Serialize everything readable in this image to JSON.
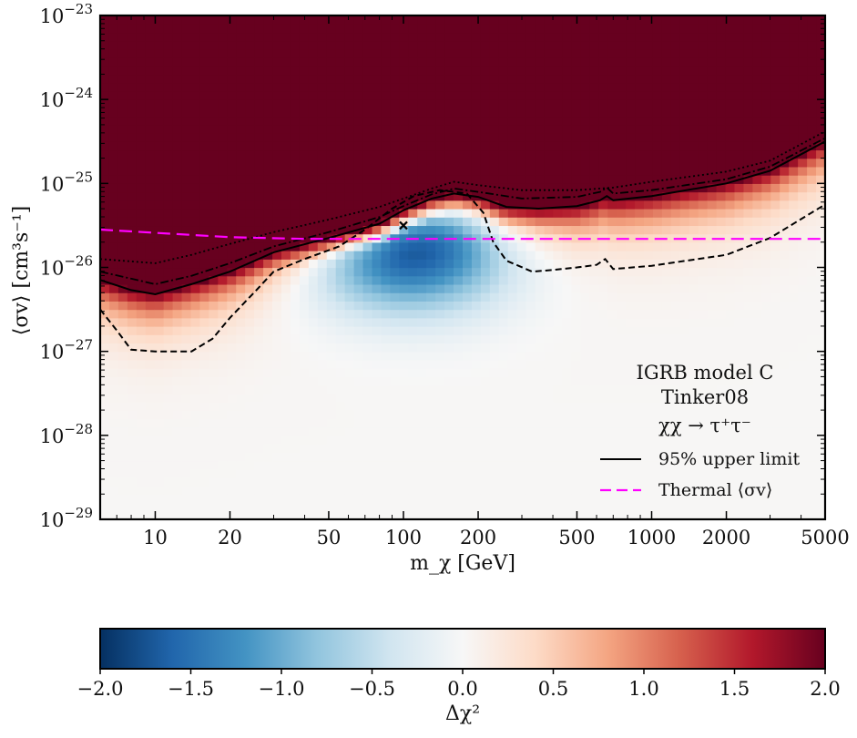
{
  "chart_data": {
    "type": "heatmap",
    "xlabel": "m_χ [GeV]",
    "ylabel": "⟨σv⟩ [cm³s⁻¹]",
    "xscale": "log",
    "yscale": "log",
    "xlim": [
      6,
      5000
    ],
    "ylim": [
      1e-29,
      1e-23
    ],
    "x_ticks": [
      {
        "value": 10,
        "label": "10"
      },
      {
        "value": 20,
        "label": "20"
      },
      {
        "value": 50,
        "label": "50"
      },
      {
        "value": 100,
        "label": "100"
      },
      {
        "value": 200,
        "label": "200"
      },
      {
        "value": 500,
        "label": "500"
      },
      {
        "value": 1000,
        "label": "1000"
      },
      {
        "value": 2000,
        "label": "2000"
      },
      {
        "value": 5000,
        "label": "5000"
      }
    ],
    "y_ticks": [
      {
        "exp": -29,
        "base": "10",
        "sup": "−29"
      },
      {
        "exp": -28,
        "base": "10",
        "sup": "−28"
      },
      {
        "exp": -27,
        "base": "10",
        "sup": "−27"
      },
      {
        "exp": -26,
        "base": "10",
        "sup": "−26"
      },
      {
        "exp": -25,
        "base": "10",
        "sup": "−25"
      },
      {
        "exp": -24,
        "base": "10",
        "sup": "−24"
      },
      {
        "exp": -23,
        "base": "10",
        "sup": "−23"
      }
    ],
    "annotation_lines": [
      "IGRB model C",
      "Tinker08",
      "χχ → τ⁺τ⁻"
    ],
    "legend": [
      {
        "label": "95% upper limit",
        "style": "solid",
        "color": "#000000"
      },
      {
        "label": "Thermal ⟨σv⟩",
        "style": "dashed",
        "color": "#ff00ff"
      }
    ],
    "thermal_log_sigma_v": [
      [
        6,
        -25.55
      ],
      [
        20,
        -25.64
      ],
      [
        40,
        -25.66
      ],
      [
        5000,
        -25.66
      ]
    ],
    "upper_limit_95": [
      [
        6,
        -26.15
      ],
      [
        8,
        -26.27
      ],
      [
        10,
        -26.32
      ],
      [
        14,
        -26.2
      ],
      [
        20,
        -26.05
      ],
      [
        30,
        -25.82
      ],
      [
        50,
        -25.65
      ],
      [
        80,
        -25.48
      ],
      [
        100,
        -25.32
      ],
      [
        130,
        -25.18
      ],
      [
        160,
        -25.12
      ],
      [
        200,
        -25.16
      ],
      [
        260,
        -25.28
      ],
      [
        350,
        -25.3
      ],
      [
        500,
        -25.27
      ],
      [
        620,
        -25.2
      ],
      [
        660,
        -25.15
      ],
      [
        700,
        -25.2
      ],
      [
        1000,
        -25.15
      ],
      [
        2000,
        -25.0
      ],
      [
        3000,
        -24.85
      ],
      [
        5000,
        -24.5
      ]
    ],
    "upper_limit_dashdot": [
      [
        6,
        -26.05
      ],
      [
        10,
        -26.2
      ],
      [
        14,
        -26.1
      ],
      [
        20,
        -25.95
      ],
      [
        30,
        -25.75
      ],
      [
        50,
        -25.58
      ],
      [
        80,
        -25.4
      ],
      [
        100,
        -25.27
      ],
      [
        130,
        -25.13
      ],
      [
        160,
        -25.06
      ],
      [
        200,
        -25.1
      ],
      [
        300,
        -25.18
      ],
      [
        500,
        -25.16
      ],
      [
        620,
        -25.1
      ],
      [
        660,
        -25.05
      ],
      [
        700,
        -25.12
      ],
      [
        1000,
        -25.08
      ],
      [
        2000,
        -24.95
      ],
      [
        3000,
        -24.8
      ],
      [
        5000,
        -24.46
      ]
    ],
    "upper_limit_dotted": [
      [
        6,
        -25.9
      ],
      [
        10,
        -25.95
      ],
      [
        14,
        -25.85
      ],
      [
        20,
        -25.72
      ],
      [
        30,
        -25.58
      ],
      [
        50,
        -25.43
      ],
      [
        80,
        -25.28
      ],
      [
        100,
        -25.18
      ],
      [
        130,
        -25.06
      ],
      [
        160,
        -24.98
      ],
      [
        200,
        -25.02
      ],
      [
        300,
        -25.08
      ],
      [
        500,
        -25.08
      ],
      [
        700,
        -25.05
      ],
      [
        1000,
        -24.98
      ],
      [
        2000,
        -24.86
      ],
      [
        3000,
        -24.73
      ],
      [
        5000,
        -24.38
      ]
    ],
    "contour_dashed": [
      [
        6,
        -26.5
      ],
      [
        7,
        -26.75
      ],
      [
        8,
        -26.98
      ],
      [
        10,
        -27.0
      ],
      [
        14,
        -27.0
      ],
      [
        17,
        -26.85
      ],
      [
        20,
        -26.6
      ],
      [
        25,
        -26.3
      ],
      [
        30,
        -26.05
      ],
      [
        40,
        -25.9
      ],
      [
        55,
        -25.75
      ],
      [
        70,
        -25.55
      ],
      [
        90,
        -25.3
      ],
      [
        110,
        -25.15
      ],
      [
        140,
        -25.08
      ],
      [
        180,
        -25.12
      ],
      [
        210,
        -25.35
      ],
      [
        230,
        -25.7
      ],
      [
        260,
        -25.92
      ],
      [
        330,
        -26.05
      ],
      [
        400,
        -26.03
      ],
      [
        500,
        -26.0
      ],
      [
        600,
        -25.97
      ],
      [
        650,
        -25.9
      ],
      [
        700,
        -26.02
      ],
      [
        1000,
        -25.98
      ],
      [
        2000,
        -25.85
      ],
      [
        3000,
        -25.65
      ],
      [
        5000,
        -25.25
      ]
    ],
    "best_fit_marker": {
      "x": 100,
      "log_y": -25.5,
      "symbol": "×"
    },
    "colorbar": {
      "label": "Δχ²",
      "range": [
        -2.0,
        2.0
      ],
      "ticks": [
        {
          "value": -2.0,
          "label": "−2.0"
        },
        {
          "value": -1.5,
          "label": "−1.5"
        },
        {
          "value": -1.0,
          "label": "−1.0"
        },
        {
          "value": -0.5,
          "label": "−0.5"
        },
        {
          "value": 0.0,
          "label": "0.0"
        },
        {
          "value": 0.5,
          "label": "0.5"
        },
        {
          "value": 1.0,
          "label": "1.0"
        },
        {
          "value": 1.5,
          "label": "1.5"
        },
        {
          "value": 2.0,
          "label": "2.0"
        }
      ],
      "colormap": "RdBu_r",
      "colormap_stops": [
        "#053061",
        "#2166ac",
        "#4393c3",
        "#92c5de",
        "#d1e5f0",
        "#f7f7f7",
        "#fddbc7",
        "#f4a582",
        "#d6604d",
        "#b2182b",
        "#67001f"
      ]
    }
  }
}
